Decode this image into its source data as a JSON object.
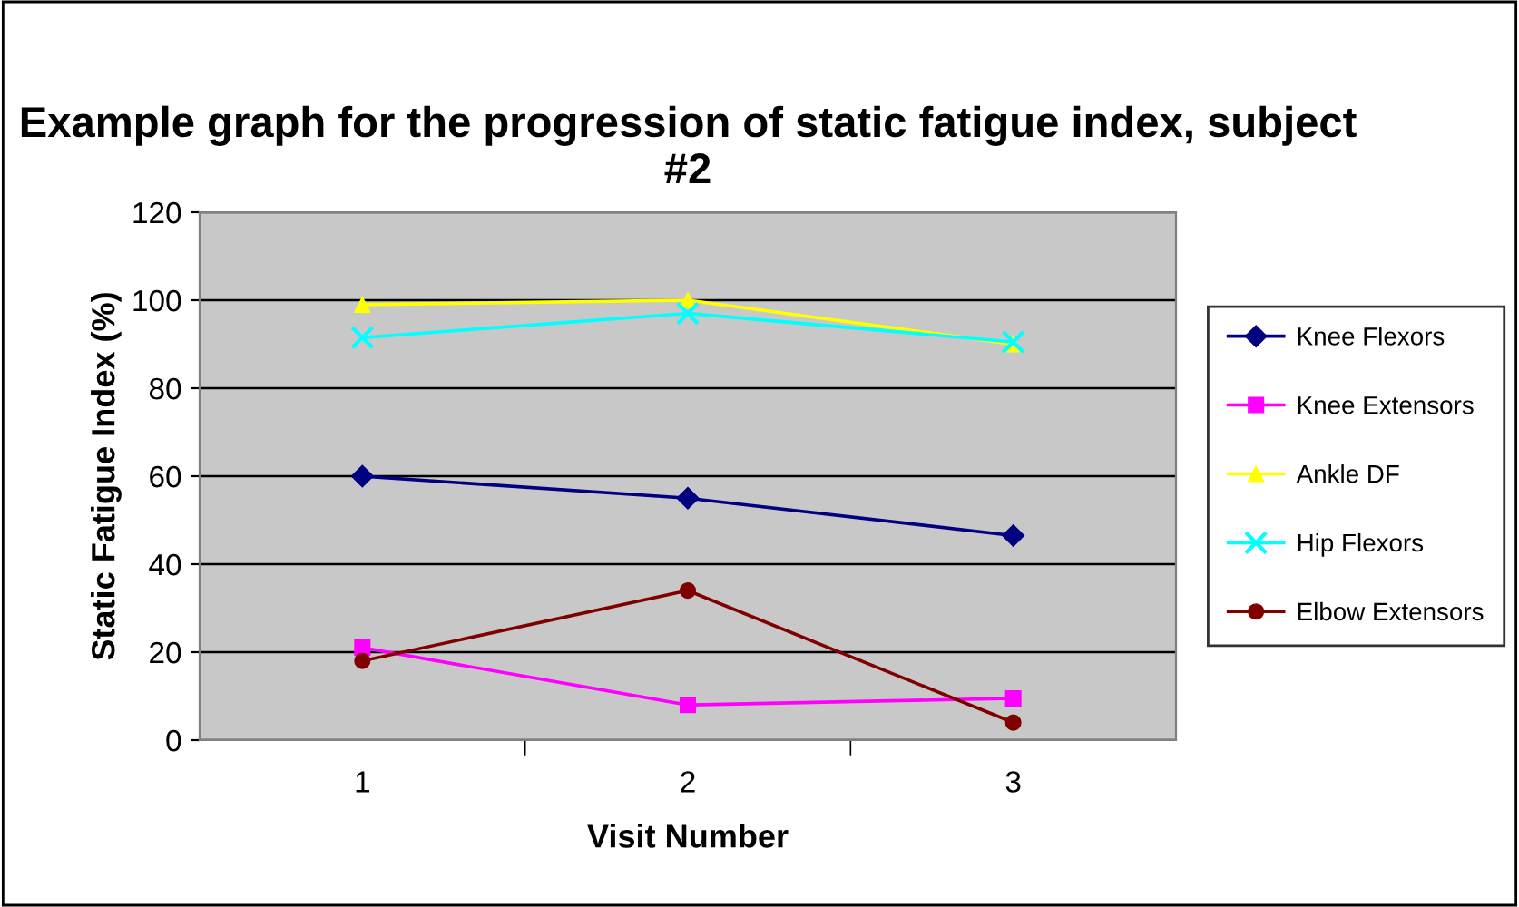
{
  "chart_data": {
    "type": "line",
    "title": "Example graph for the progression of static fatigue index, subject #2",
    "xlabel": "Visit Number",
    "ylabel": "Static Fatigue Index (%)",
    "categories": [
      "1",
      "2",
      "3"
    ],
    "series": [
      {
        "name": "Knee Flexors",
        "color": "#000080",
        "marker": "diamond",
        "values": [
          60,
          55,
          46.5
        ]
      },
      {
        "name": "Knee Extensors",
        "color": "#ff00ff",
        "marker": "square",
        "values": [
          21,
          8,
          9.5
        ]
      },
      {
        "name": "Ankle DF",
        "color": "#ffff00",
        "marker": "triangle",
        "values": [
          99,
          100,
          90
        ]
      },
      {
        "name": "Hip Flexors",
        "color": "#00ffff",
        "marker": "cross",
        "values": [
          91.5,
          97,
          90.5
        ]
      },
      {
        "name": "Elbow Extensors",
        "color": "#800000",
        "marker": "circle",
        "values": [
          18,
          34,
          4
        ]
      }
    ],
    "ylim": [
      0,
      120
    ],
    "yticks": [
      0,
      20,
      40,
      60,
      80,
      100,
      120
    ],
    "grid": "y",
    "legend": "right",
    "line_style": "solid"
  }
}
